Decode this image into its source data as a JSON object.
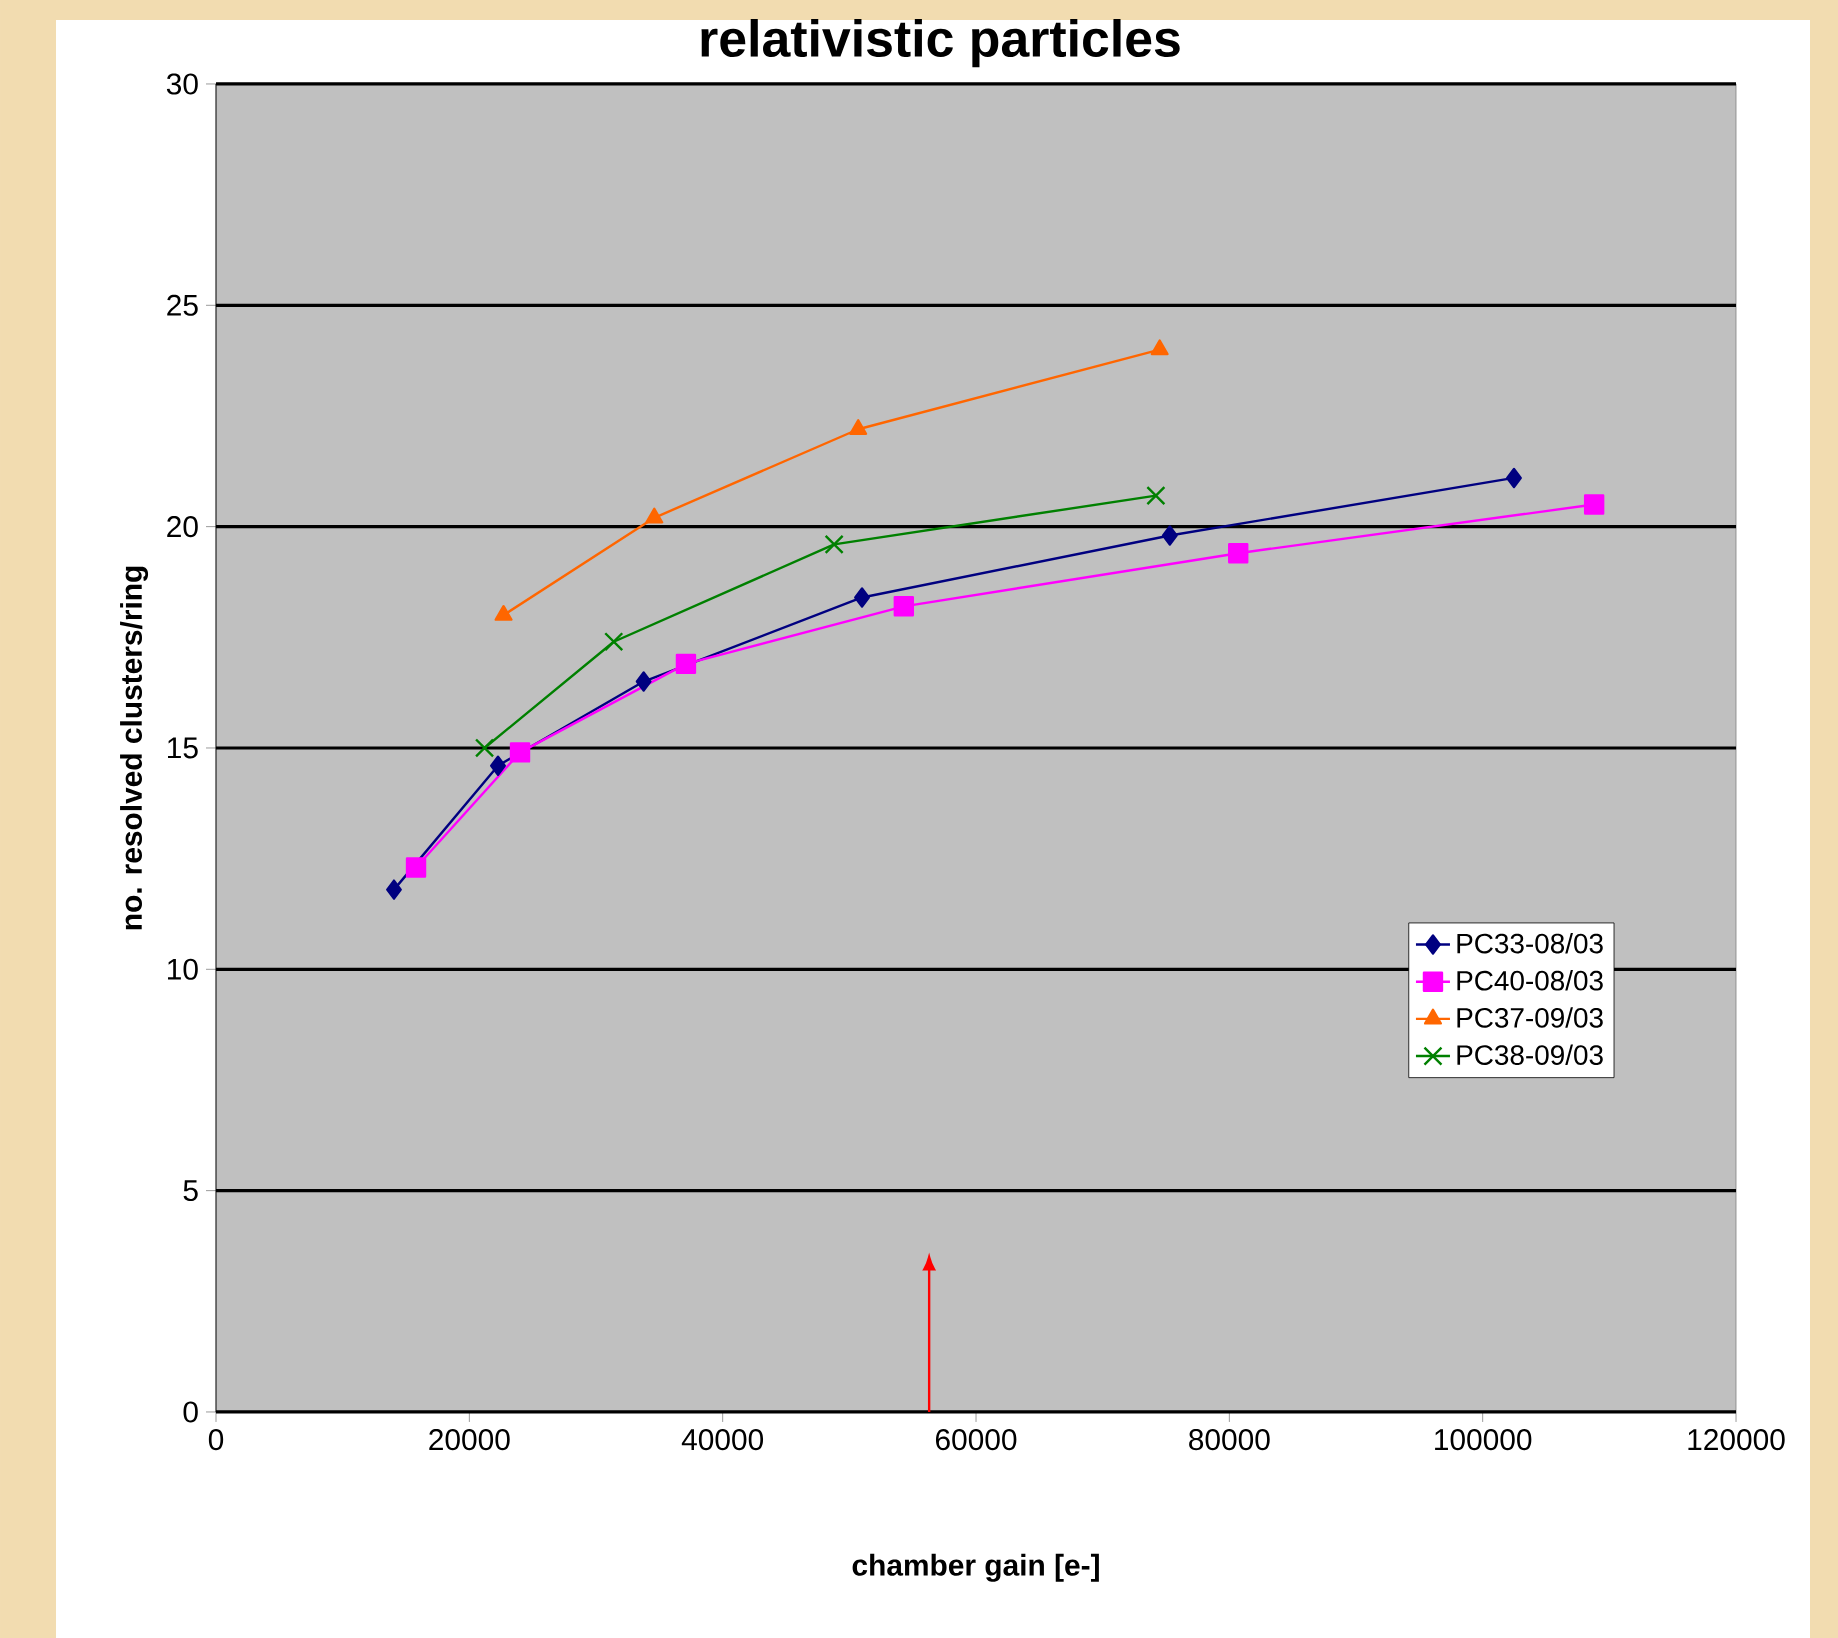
{
  "chart_data": {
    "type": "line",
    "title": "relativistic particles",
    "xlabel": "chamber gain [e-]",
    "ylabel": "no. resolved clusters/ring",
    "xlim": [
      0,
      120000
    ],
    "xticks": [
      0,
      20000,
      40000,
      60000,
      80000,
      100000,
      120000
    ],
    "ylim": [
      0,
      30
    ],
    "yticks": [
      0,
      5,
      10,
      15,
      20,
      25,
      30
    ],
    "grid": "y",
    "legend": "right",
    "series": [
      {
        "name": "PC33-08/03",
        "color": "#000080",
        "marker": "diamond",
        "x": [
          14050,
          22260,
          33760,
          51000,
          75300,
          102470
        ],
        "values": [
          11.8,
          14.6,
          16.5,
          18.4,
          19.8,
          21.1
        ]
      },
      {
        "name": "PC40-08/03",
        "color": "#ff00ff",
        "marker": "square",
        "x": [
          15790,
          24000,
          37100,
          54300,
          80700,
          108800
        ],
        "values": [
          12.3,
          14.9,
          16.9,
          18.2,
          19.4,
          20.5
        ]
      },
      {
        "name": "PC37-09/03",
        "color": "#ff6600",
        "marker": "triangle",
        "x": [
          22700,
          34600,
          50700,
          74500
        ],
        "values": [
          18.0,
          20.2,
          22.2,
          24.0
        ]
      },
      {
        "name": "PC38-09/03",
        "color": "#008000",
        "marker": "cross",
        "x": [
          21200,
          31400,
          48800,
          74200
        ],
        "values": [
          15.0,
          17.4,
          19.6,
          20.7
        ]
      }
    ]
  }
}
